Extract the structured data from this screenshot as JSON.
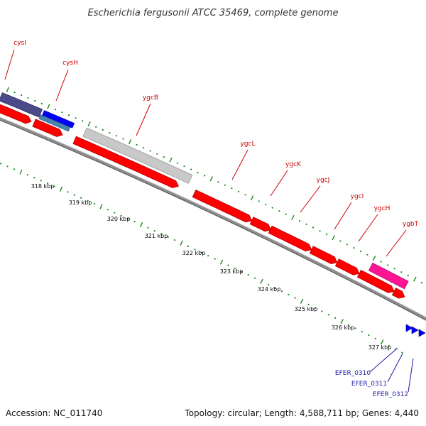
{
  "title": "Escherichia fergusonii ATCC 35469, complete genome",
  "footer": {
    "accession": "Accession: NC_011740",
    "topology": "Topology: circular; Length: 4,588,711 bp; Genes: 4,440"
  },
  "colors": {
    "gene_red": "#ff0000",
    "gene_red_dark": "#b30000",
    "pseudo_gray": "#c8c8c8",
    "navy": "#4a4a8a",
    "blue": "#0000ff",
    "steel_blue": "#4682b4",
    "magenta": "#ff1493",
    "tick_green": "#1a8a1a",
    "label_red": "#cc0000",
    "label_blue": "#1a1aa6",
    "backbone": "#8c8c8c"
  },
  "gene_labels": [
    {
      "text": "cysI",
      "color": "red"
    },
    {
      "text": "cysH",
      "color": "red"
    },
    {
      "text": "ygcB",
      "color": "red"
    },
    {
      "text": "ygcL",
      "color": "red"
    },
    {
      "text": "ygcK",
      "color": "red"
    },
    {
      "text": "ygcJ",
      "color": "red"
    },
    {
      "text": "ygcI",
      "color": "red"
    },
    {
      "text": "ygcH",
      "color": "red"
    },
    {
      "text": "ygbT",
      "color": "red"
    },
    {
      "text": "EFER_0310",
      "color": "blue"
    },
    {
      "text": "EFER_0311",
      "color": "blue"
    },
    {
      "text": "EFER_0312",
      "color": "blue"
    }
  ],
  "kbp_ticks": [
    "318 kbp",
    "319 kbp",
    "320 kbp",
    "321 kbp",
    "322 kbp",
    "323 kbp",
    "324 kbp",
    "325 kbp",
    "326 kbp",
    "327 kbp"
  ]
}
